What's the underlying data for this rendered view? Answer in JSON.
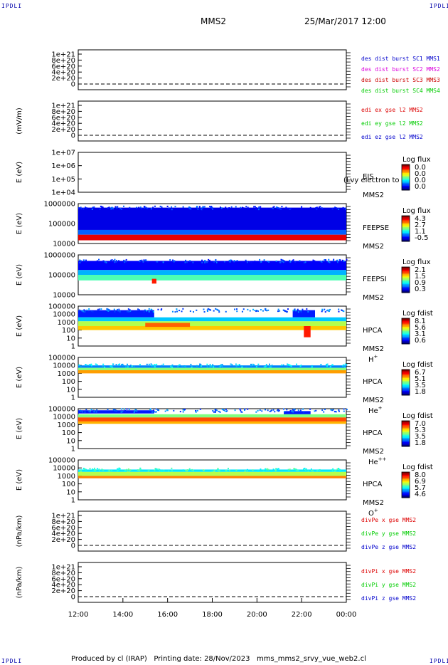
{
  "corner_label": "IPDLI",
  "header": {
    "mission": "MMS2",
    "datetime": "25/Mar/2017 12:00"
  },
  "footer": {
    "text": "Produced by cl (IRAP)   Printing date: 28/Nov/2023   mms_mms2_srvy_vue_web2.cl"
  },
  "colors": {
    "mms1": "#0000cc",
    "mms2": "#dd00dd",
    "mms3": "#cc0000",
    "mms4": "#00cc00",
    "red": "#dd0000",
    "green": "#00cc00",
    "blue": "#0000cc"
  },
  "chart_data": [
    {
      "type": "line",
      "ylabel": "",
      "yticks": [
        "1e+21",
        "8e+20",
        "6e+20",
        "4e+20",
        "2e+20",
        "0"
      ],
      "legend": [
        {
          "text": "des dist burst SC1 MMS1",
          "color": "#0000cc"
        },
        {
          "text": "des dist burst SC2 MMS2",
          "color": "#dd00dd"
        },
        {
          "text": "des dist burst SC3 MMS3",
          "color": "#cc0000"
        },
        {
          "text": "des dist burst SC4 MMS4",
          "color": "#00cc00"
        }
      ],
      "series": []
    },
    {
      "type": "line",
      "ylabel": "(mV/m)",
      "yticks": [
        "1e+21",
        "8e+20",
        "6e+20",
        "4e+20",
        "2e+20",
        "0"
      ],
      "legend": [
        {
          "text": "edi ex gse l2 MMS2",
          "color": "#dd0000"
        },
        {
          "text": "edi ey gse l2 MMS2",
          "color": "#00cc00"
        },
        {
          "text": "edi ez gse l2 MMS2",
          "color": "#0000cc"
        }
      ],
      "series": []
    },
    {
      "type": "heatmap",
      "ylabel": "E (eV)",
      "log": true,
      "yticks": [
        "1e+07",
        "1e+06",
        "1e+05",
        "1e+04"
      ],
      "instrument": [
        "EIS",
        "MMS2"
      ],
      "overlay": "(Lvy electron to",
      "colorbar": {
        "title": "Log flux",
        "ticks": [
          "0.0",
          "0.0",
          "0.0",
          "0.0"
        ]
      },
      "bands": []
    },
    {
      "type": "heatmap",
      "ylabel": "E (eV)",
      "log": true,
      "yticks": [
        "1000000",
        "100000",
        "10000"
      ],
      "instrument": [
        "FEEPSE",
        "MMS2"
      ],
      "colorbar": {
        "title": "Log flux",
        "ticks": [
          "4.3",
          "2.7",
          "1.1",
          "-0.5"
        ]
      },
      "bands": [
        {
          "t0": 12.0,
          "t1": 24.0,
          "f0": 0.1,
          "f1": 0.66,
          "level": 0.1
        },
        {
          "t0": 12.0,
          "t1": 24.0,
          "f0": 0.66,
          "f1": 0.78,
          "level": 0.22
        },
        {
          "t0": 12.0,
          "t1": 24.0,
          "f0": 0.78,
          "f1": 0.92,
          "level": 0.9
        }
      ]
    },
    {
      "type": "heatmap",
      "ylabel": "E (eV)",
      "log": true,
      "yticks": [
        "1000000",
        "100000",
        "10000"
      ],
      "instrument": [
        "FEEPSI",
        "MMS2"
      ],
      "colorbar": {
        "title": "Log flux",
        "ticks": [
          "2.1",
          "1.5",
          "0.9",
          "0.3"
        ]
      },
      "bands": [
        {
          "t0": 12.0,
          "t1": 24.0,
          "f0": 0.15,
          "f1": 0.38,
          "level": 0.12
        },
        {
          "t0": 12.0,
          "t1": 24.0,
          "f0": 0.38,
          "f1": 0.5,
          "level": 0.3
        },
        {
          "t0": 12.0,
          "t1": 24.0,
          "f0": 0.5,
          "f1": 0.64,
          "level": 0.45
        },
        {
          "t0": 15.3,
          "t1": 15.5,
          "f0": 0.6,
          "f1": 0.72,
          "level": 0.85
        }
      ]
    },
    {
      "type": "heatmap",
      "ylabel": "E (eV)",
      "log": true,
      "yticks": [
        "100000",
        "10000",
        "1000",
        "100",
        "10",
        "1"
      ],
      "instrument": [
        "HPCA",
        "MMS2",
        "H+"
      ],
      "colorbar": {
        "title": "Log fdist",
        "ticks": [
          "8.1",
          "5.6",
          "3.1",
          "0.6"
        ]
      },
      "bands": [
        {
          "t0": 12.0,
          "t1": 15.4,
          "f0": 0.1,
          "f1": 0.28,
          "level": 0.15
        },
        {
          "t0": 21.6,
          "t1": 22.6,
          "f0": 0.1,
          "f1": 0.28,
          "level": 0.15
        },
        {
          "t0": 12.0,
          "t1": 24.0,
          "f0": 0.28,
          "f1": 0.38,
          "level": 0.32
        },
        {
          "t0": 12.0,
          "t1": 24.0,
          "f0": 0.38,
          "f1": 0.5,
          "level": 0.55
        },
        {
          "t0": 12.0,
          "t1": 24.0,
          "f0": 0.5,
          "f1": 0.6,
          "level": 0.68
        },
        {
          "t0": 15.0,
          "t1": 17.0,
          "f0": 0.42,
          "f1": 0.52,
          "level": 0.78
        },
        {
          "t0": 22.1,
          "t1": 22.4,
          "f0": 0.5,
          "f1": 0.78,
          "level": 0.85
        }
      ]
    },
    {
      "type": "heatmap",
      "ylabel": "E (eV)",
      "log": true,
      "yticks": [
        "100000",
        "10000",
        "1000",
        "100",
        "10",
        "1"
      ],
      "instrument": [
        "HPCA",
        "MMS2",
        "He+"
      ],
      "colorbar": {
        "title": "Log fdist",
        "ticks": [
          "6.7",
          "5.1",
          "3.5",
          "1.8"
        ]
      },
      "bands": [
        {
          "t0": 12.0,
          "t1": 24.0,
          "f0": 0.2,
          "f1": 0.26,
          "level": 0.25
        },
        {
          "t0": 12.0,
          "t1": 24.0,
          "f0": 0.26,
          "f1": 0.32,
          "level": 0.5
        },
        {
          "t0": 12.0,
          "t1": 24.0,
          "f0": 0.32,
          "f1": 0.4,
          "level": 0.72
        }
      ]
    },
    {
      "type": "heatmap",
      "ylabel": "E (eV)",
      "log": true,
      "yticks": [
        "100000",
        "10000",
        "1000",
        "100",
        "10",
        "1"
      ],
      "instrument": [
        "HPCA",
        "MMS2",
        "He++"
      ],
      "colorbar": {
        "title": "Log fdist",
        "ticks": [
          "7.0",
          "5.3",
          "3.5",
          "1.8"
        ]
      },
      "bands": [
        {
          "t0": 12.0,
          "t1": 15.4,
          "f0": 0.04,
          "f1": 0.12,
          "level": 0.15
        },
        {
          "t0": 21.2,
          "t1": 22.4,
          "f0": 0.06,
          "f1": 0.14,
          "level": 0.15
        },
        {
          "t0": 12.0,
          "t1": 24.0,
          "f0": 0.14,
          "f1": 0.22,
          "level": 0.5
        },
        {
          "t0": 12.0,
          "t1": 24.0,
          "f0": 0.22,
          "f1": 0.32,
          "level": 0.8
        },
        {
          "t0": 12.0,
          "t1": 24.0,
          "f0": 0.32,
          "f1": 0.38,
          "level": 0.7
        }
      ]
    },
    {
      "type": "heatmap",
      "ylabel": "E (eV)",
      "log": true,
      "yticks": [
        "100000",
        "10000",
        "1000",
        "100",
        "10",
        "1"
      ],
      "instrument": [
        "HPCA",
        "MMS2",
        "O+"
      ],
      "colorbar": {
        "title": "Log fdist",
        "ticks": [
          "8.0",
          "6.9",
          "5.7",
          "4.6"
        ]
      },
      "bands": [
        {
          "t0": 12.0,
          "t1": 24.0,
          "f0": 0.24,
          "f1": 0.3,
          "level": 0.35
        },
        {
          "t0": 12.0,
          "t1": 24.0,
          "f0": 0.3,
          "f1": 0.4,
          "level": 0.55
        },
        {
          "t0": 12.0,
          "t1": 24.0,
          "f0": 0.4,
          "f1": 0.46,
          "level": 0.75
        }
      ]
    },
    {
      "type": "line",
      "ylabel": "(nPa/km)",
      "yticks": [
        "1e+21",
        "8e+20",
        "6e+20",
        "4e+20",
        "2e+20",
        "0"
      ],
      "legend": [
        {
          "text": "divPe x gse MMS2",
          "color": "#dd0000"
        },
        {
          "text": "divPe y gse MMS2",
          "color": "#00cc00"
        },
        {
          "text": "divPe z gse MMS2",
          "color": "#0000cc"
        }
      ],
      "series": []
    },
    {
      "type": "line",
      "ylabel": "(nPa/km)",
      "yticks": [
        "1e+21",
        "8e+20",
        "6e+20",
        "4e+20",
        "2e+20",
        "0"
      ],
      "legend": [
        {
          "text": "divPi x gse MMS2",
          "color": "#dd0000"
        },
        {
          "text": "divPi y gse MMS2",
          "color": "#00cc00"
        },
        {
          "text": "divPi z gse MMS2",
          "color": "#0000cc"
        }
      ],
      "series": []
    }
  ],
  "xaxis": {
    "range": [
      12,
      24
    ],
    "ticks": [
      "12:00",
      "14:00",
      "16:00",
      "18:00",
      "20:00",
      "22:00",
      "00:00"
    ]
  }
}
